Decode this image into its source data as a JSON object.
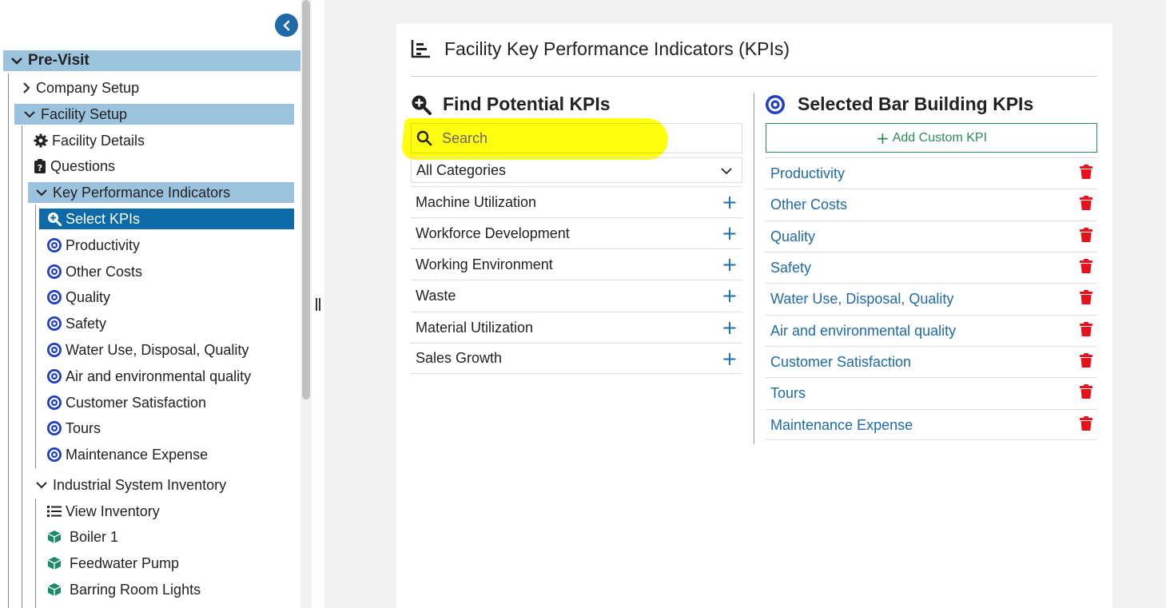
{
  "sidebar": {
    "nav": [
      {
        "label": "Pre-Visit",
        "icon": "chevron-down-icon",
        "level": 0
      },
      {
        "label": "Company Setup",
        "icon": "chevron-right-icon",
        "level": 1
      },
      {
        "label": "Facility Setup",
        "icon": "chevron-down-icon",
        "level": 1
      },
      {
        "label": "Facility Details",
        "icon": "gear-icon",
        "level": 2
      },
      {
        "label": "Questions",
        "icon": "clipboard-question-icon",
        "level": 2
      },
      {
        "label": "Key Performance Indicators",
        "icon": "chevron-down-icon",
        "level": 2
      },
      {
        "label": "Select KPIs",
        "icon": "search-plus-icon",
        "level": 3
      },
      {
        "label": "Productivity",
        "icon": "target-icon",
        "level": 3
      },
      {
        "label": "Other Costs",
        "icon": "target-icon",
        "level": 3
      },
      {
        "label": "Quality",
        "icon": "target-icon",
        "level": 3
      },
      {
        "label": "Safety",
        "icon": "target-icon",
        "level": 3
      },
      {
        "label": "Water Use, Disposal, Quality",
        "icon": "target-icon",
        "level": 3
      },
      {
        "label": "Air and environmental quality",
        "icon": "target-icon",
        "level": 3
      },
      {
        "label": "Customer Satisfaction",
        "icon": "target-icon",
        "level": 3
      },
      {
        "label": "Tours",
        "icon": "target-icon",
        "level": 3
      },
      {
        "label": "Maintenance Expense",
        "icon": "target-icon",
        "level": 3
      },
      {
        "label": "Industrial System Inventory",
        "icon": "chevron-down-icon",
        "level": 2
      },
      {
        "label": "View Inventory",
        "icon": "list-icon",
        "level": 3
      },
      {
        "label": "Boiler 1",
        "icon": "cube-icon",
        "level": 3
      },
      {
        "label": "Feedwater Pump",
        "icon": "cube-icon",
        "level": 3
      },
      {
        "label": "Barring Room Lights",
        "icon": "cube-icon",
        "level": 3
      }
    ]
  },
  "card": {
    "title": "Facility Key Performance Indicators (KPIs)",
    "find": {
      "title": "Find Potential KPIs",
      "search_placeholder": "Search",
      "category_selected": "All Categories",
      "items": [
        "Machine Utilization",
        "Workforce Development",
        "Working Environment",
        "Waste",
        "Material Utilization",
        "Sales Growth"
      ]
    },
    "selected": {
      "title": "Selected Bar Building KPIs",
      "add_label": "Add Custom KPI",
      "items": [
        "Productivity",
        "Other Costs",
        "Quality",
        "Safety",
        "Water Use, Disposal, Quality",
        "Air and environmental quality",
        "Customer Satisfaction",
        "Tours",
        "Maintenance Expense"
      ]
    }
  },
  "colors": {
    "accent": "#1f6aa7",
    "highlight_row": "#9cc3de",
    "selected_row": "#0d6aa8",
    "target_icon": "#1f3fbf",
    "trash_icon": "#e8101a",
    "cube_icon": "#1a8a6a",
    "add_button": "#2e8b57",
    "search_highlight": "#ffff00"
  }
}
